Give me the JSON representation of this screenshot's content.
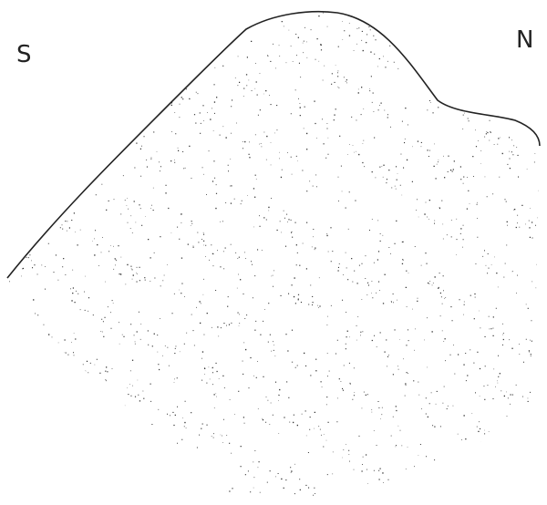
{
  "labels": {
    "left": "S",
    "right": "N"
  }
}
